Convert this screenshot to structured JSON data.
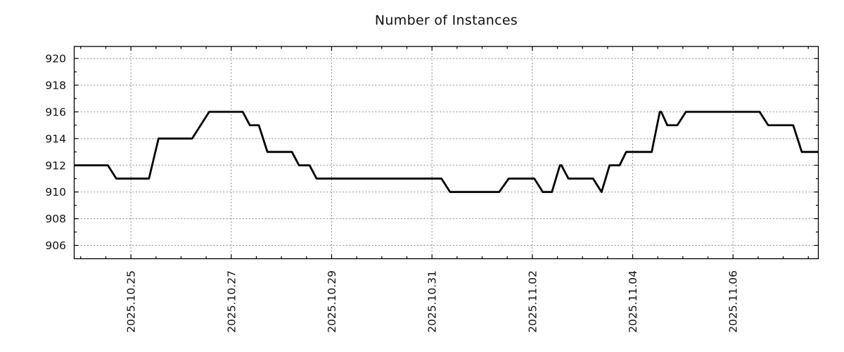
{
  "page": {
    "background": "#ffffff"
  },
  "chart_data": {
    "type": "line",
    "title": "Number of Instances",
    "legend": "none",
    "grid_color": "#8c8c8c",
    "frame_color": "#000000",
    "text_color": "#111111",
    "x": {
      "unit": "days since 2025.10.25 00:00",
      "range": [
        -1.13,
        13.7
      ],
      "minor_tick_interval": 0.5,
      "major_ticks": [
        {
          "t": 0,
          "label": "2025.10.25"
        },
        {
          "t": 2,
          "label": "2025.10.27"
        },
        {
          "t": 4,
          "label": "2025.10.29"
        },
        {
          "t": 6,
          "label": "2025.10.31"
        },
        {
          "t": 8,
          "label": "2025.11.02"
        },
        {
          "t": 10,
          "label": "2025.11.04"
        },
        {
          "t": 12,
          "label": "2025.11.06"
        }
      ],
      "gridlines_at_major": true
    },
    "y": {
      "range": [
        905.0,
        920.9
      ],
      "major_ticks": [
        906,
        908,
        910,
        912,
        914,
        916,
        918,
        920
      ],
      "minor_ticks": [
        907,
        909,
        911,
        913,
        915,
        917,
        919
      ],
      "gridlines_at_major": true
    },
    "series": [
      {
        "name": "Number of Instances",
        "color": "#000000",
        "points": [
          [
            -1.13,
            912
          ],
          [
            -0.46,
            912
          ],
          [
            -0.29,
            911
          ],
          [
            0.36,
            911
          ],
          [
            0.55,
            914
          ],
          [
            1.22,
            914
          ],
          [
            1.56,
            916
          ],
          [
            2.23,
            916
          ],
          [
            2.37,
            915
          ],
          [
            2.55,
            915
          ],
          [
            2.72,
            913
          ],
          [
            3.21,
            913
          ],
          [
            3.35,
            912
          ],
          [
            3.56,
            912
          ],
          [
            3.7,
            911
          ],
          [
            6.19,
            911
          ],
          [
            6.36,
            910
          ],
          [
            7.34,
            910
          ],
          [
            7.53,
            911
          ],
          [
            8.04,
            911
          ],
          [
            8.21,
            910
          ],
          [
            8.39,
            910
          ],
          [
            8.55,
            912
          ],
          [
            8.58,
            912
          ],
          [
            8.72,
            911
          ],
          [
            9.21,
            911
          ],
          [
            9.38,
            910
          ],
          [
            9.54,
            912
          ],
          [
            9.74,
            912
          ],
          [
            9.87,
            913
          ],
          [
            10.38,
            913
          ],
          [
            10.54,
            916
          ],
          [
            10.57,
            916
          ],
          [
            10.69,
            915
          ],
          [
            10.89,
            915
          ],
          [
            11.06,
            916
          ],
          [
            12.53,
            916
          ],
          [
            12.7,
            915
          ],
          [
            13.2,
            915
          ],
          [
            13.37,
            913
          ],
          [
            13.7,
            913
          ]
        ]
      }
    ]
  }
}
